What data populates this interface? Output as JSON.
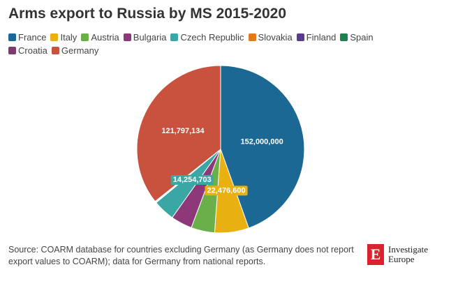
{
  "chart_data": {
    "type": "pie",
    "title": "Arms export to Russia by MS 2015-2020",
    "categories": [
      "France",
      "Italy",
      "Austria",
      "Bulgaria",
      "Czech Republic",
      "Slovakia",
      "Finland",
      "Spain",
      "Croatia",
      "Germany"
    ],
    "values": [
      152000000,
      22476600,
      15500000,
      14000000,
      14254703,
      500000,
      300000,
      200000,
      100000,
      121797134
    ],
    "value_labels": [
      "152,000,000",
      "22,476,600",
      null,
      null,
      "14,254,703",
      null,
      null,
      null,
      null,
      "121,797,134"
    ],
    "colors": [
      "#1c6894",
      "#e9b012",
      "#6aaf4a",
      "#8d3979",
      "#3ba7a4",
      "#e17a1b",
      "#5a3b8d",
      "#1f7f4d",
      "#7c3a71",
      "#c9523f"
    ],
    "legend": "top-left",
    "source": "Source: COARM database for countries excluding Germany (as Germany does not report export values to COARM); data for Germany from national reports.",
    "logo": {
      "mark": "E",
      "text": [
        "Investigate",
        "Europe"
      ]
    }
  }
}
